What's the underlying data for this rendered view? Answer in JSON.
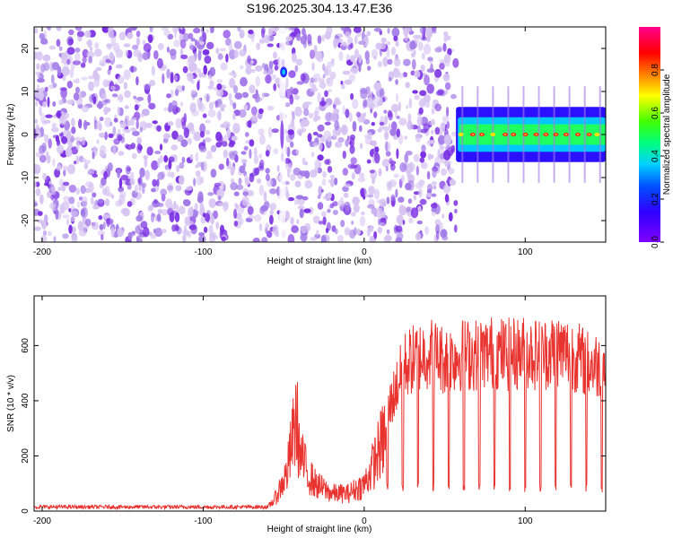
{
  "title": "S196.2025.304.13.47.E36",
  "colors": {
    "snr_line": "#e8332f",
    "spec_background": "#ffffff",
    "spec_texture_light": "#d7c4f2",
    "spec_texture_mid": "#a27ae8",
    "spec_texture_dark": "#7a2fe3"
  },
  "chart_data": [
    {
      "type": "heatmap",
      "xlabel": "Height of straight line (km)",
      "ylabel": "Frequency (Hz)",
      "xlim": [
        -205,
        150
      ],
      "ylim": [
        -25,
        25
      ],
      "xticks": [
        -200,
        -100,
        0,
        100
      ],
      "yticks": [
        -20,
        -10,
        0,
        10,
        20
      ],
      "grid": false,
      "colorbar": {
        "label": "Normalized spectral amplitude",
        "range": [
          0,
          1
        ],
        "ticks": [
          0.0,
          0.2,
          0.4,
          0.6,
          0.8
        ],
        "tick_labels": [
          "0.0",
          "0.2",
          "0.4",
          "0.6",
          "0.8"
        ],
        "colormap": "rainbow (purple-blue-cyan-green-yellow-red-magenta)"
      },
      "noise_region_x": [
        -205,
        57
      ],
      "empty_region_x": [
        57,
        150
      ],
      "signal_band": {
        "x_range": [
          57,
          150
        ],
        "center_frequency": 0,
        "half_width_hz": 2,
        "peak_amplitude": 0.9
      },
      "features": [
        {
          "x": -50,
          "frequency": 14.5,
          "amplitude": 0.2
        },
        {
          "x": -51,
          "frequency": 0,
          "amplitude": 0.05
        }
      ]
    },
    {
      "type": "line",
      "xlabel": "Height of straight line (km)",
      "ylabel": "SNR (10 * v/v)",
      "xlim": [
        -205,
        150
      ],
      "ylim": [
        0,
        780
      ],
      "xticks": [
        -200,
        -100,
        0,
        100
      ],
      "yticks": [
        0,
        200,
        400,
        600
      ],
      "grid": false,
      "series": [
        {
          "profile_x": [
            -205,
            -60,
            -55,
            -48,
            -42,
            -40,
            -35,
            -30,
            -20,
            -10,
            0,
            5,
            12,
            18,
            25,
            30,
            40,
            50,
            60,
            70,
            80,
            90,
            100,
            110,
            120,
            130,
            140,
            150
          ],
          "profile_y": [
            15,
            15,
            60,
            170,
            430,
            260,
            170,
            120,
            80,
            80,
            120,
            200,
            330,
            440,
            560,
            580,
            610,
            580,
            600,
            600,
            610,
            600,
            610,
            600,
            620,
            600,
            560,
            560
          ],
          "noise_floor": 15,
          "dip_spacing_km": 9.5,
          "dip_start_km": 14,
          "dip_level": 80
        }
      ]
    }
  ]
}
